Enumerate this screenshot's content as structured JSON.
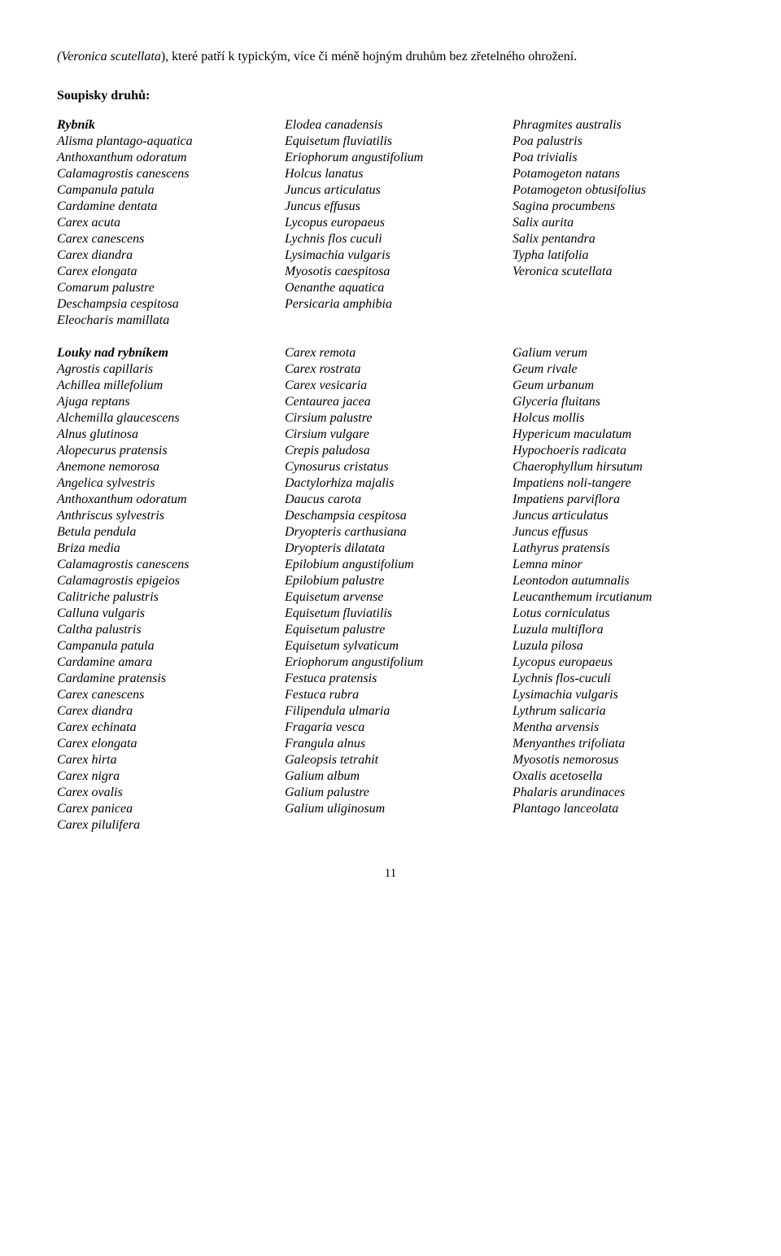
{
  "intro": {
    "prefix_species": "(Veronica scutellata",
    "text": "), které patří k typickým, více či méně hojným druhům bez zřetelného ohrožení."
  },
  "section_heading": "Soupisky druhů:",
  "rybnik": {
    "heading": "Rybník",
    "col1": [
      "Alisma plantago-aquatica",
      "Anthoxanthum odoratum",
      "Calamagrostis canescens",
      "Campanula patula",
      "Cardamine dentata",
      "Carex acuta",
      "Carex canescens",
      "Carex diandra",
      "Carex elongata",
      "Comarum palustre",
      "Deschampsia cespitosa",
      "Eleocharis mamillata"
    ],
    "col2": [
      "Elodea canadensis",
      "Equisetum fluviatilis",
      "Eriophorum angustifolium",
      "Holcus lanatus",
      "Juncus articulatus",
      "Juncus effusus",
      "Lycopus europaeus",
      "Lychnis flos cuculi",
      "Lysimachia vulgaris",
      "Myosotis caespitosa",
      "Oenanthe aquatica",
      "Persicaria amphibia"
    ],
    "col3": [
      "Phragmites australis",
      "Poa palustris",
      "Poa trivialis",
      "Potamogeton natans",
      "Potamogeton obtusifolius",
      "Sagina procumbens",
      "Salix aurita",
      "Salix pentandra",
      "Typha latifolia",
      "Veronica scutellata"
    ]
  },
  "louky": {
    "heading": "Louky nad rybníkem",
    "col1": [
      "Agrostis capillaris",
      "Achillea millefolium",
      "Ajuga reptans",
      "Alchemilla glaucescens",
      "Alnus glutinosa",
      "Alopecurus pratensis",
      "Anemone nemorosa",
      "Angelica sylvestris",
      "Anthoxanthum odoratum",
      "Anthriscus sylvestris",
      "Betula pendula",
      "Briza media",
      "Calamagrostis canescens",
      "Calamagrostis epigeios",
      "Calitriche palustris",
      "Calluna vulgaris",
      "Caltha palustris",
      "Campanula patula",
      "Cardamine amara",
      "Cardamine pratensis",
      "Carex canescens",
      "Carex diandra",
      "Carex echinata",
      "Carex elongata",
      "Carex hirta",
      "Carex nigra",
      "Carex ovalis",
      "Carex panicea",
      "Carex pilulifera"
    ],
    "col2": [
      "Carex remota",
      "Carex rostrata",
      "Carex vesicaria",
      "Centaurea jacea",
      "Cirsium palustre",
      "Cirsium vulgare",
      "Crepis paludosa",
      "Cynosurus cristatus",
      "Dactylorhiza majalis",
      "Daucus carota",
      "Deschampsia cespitosa",
      "Dryopteris carthusiana",
      "Dryopteris dilatata",
      "Epilobium angustifolium",
      "Epilobium palustre",
      "Equisetum arvense",
      "Equisetum fluviatilis",
      "Equisetum palustre",
      "Equisetum sylvaticum",
      "Eriophorum angustifolium",
      "Festuca pratensis",
      "Festuca rubra",
      "Filipendula ulmaria",
      "Fragaria vesca",
      "Frangula alnus",
      "Galeopsis tetrahit",
      "Galium album",
      "Galium palustre",
      "Galium uliginosum"
    ],
    "col3": [
      "Galium verum",
      "Geum rivale",
      "Geum urbanum",
      "Glyceria fluitans",
      "Holcus mollis",
      "Hypericum maculatum",
      "Hypochoeris radicata",
      "Chaerophyllum hirsutum",
      "Impatiens noli-tangere",
      "Impatiens parviflora",
      "Juncus articulatus",
      "Juncus effusus",
      "Lathyrus pratensis",
      "Lemna minor",
      "Leontodon autumnalis",
      "Leucanthemum ircutianum",
      "Lotus corniculatus",
      "Luzula multiflora",
      "Luzula pilosa",
      "Lycopus europaeus",
      "Lychnis flos-cuculi",
      "Lysimachia vulgaris",
      "Lythrum salicaria",
      "Mentha arvensis",
      "Menyanthes trifoliata",
      "Myosotis nemorosus",
      "Oxalis acetosella",
      "Phalaris arundinaces",
      "Plantago lanceolata"
    ]
  },
  "page_number": "11"
}
